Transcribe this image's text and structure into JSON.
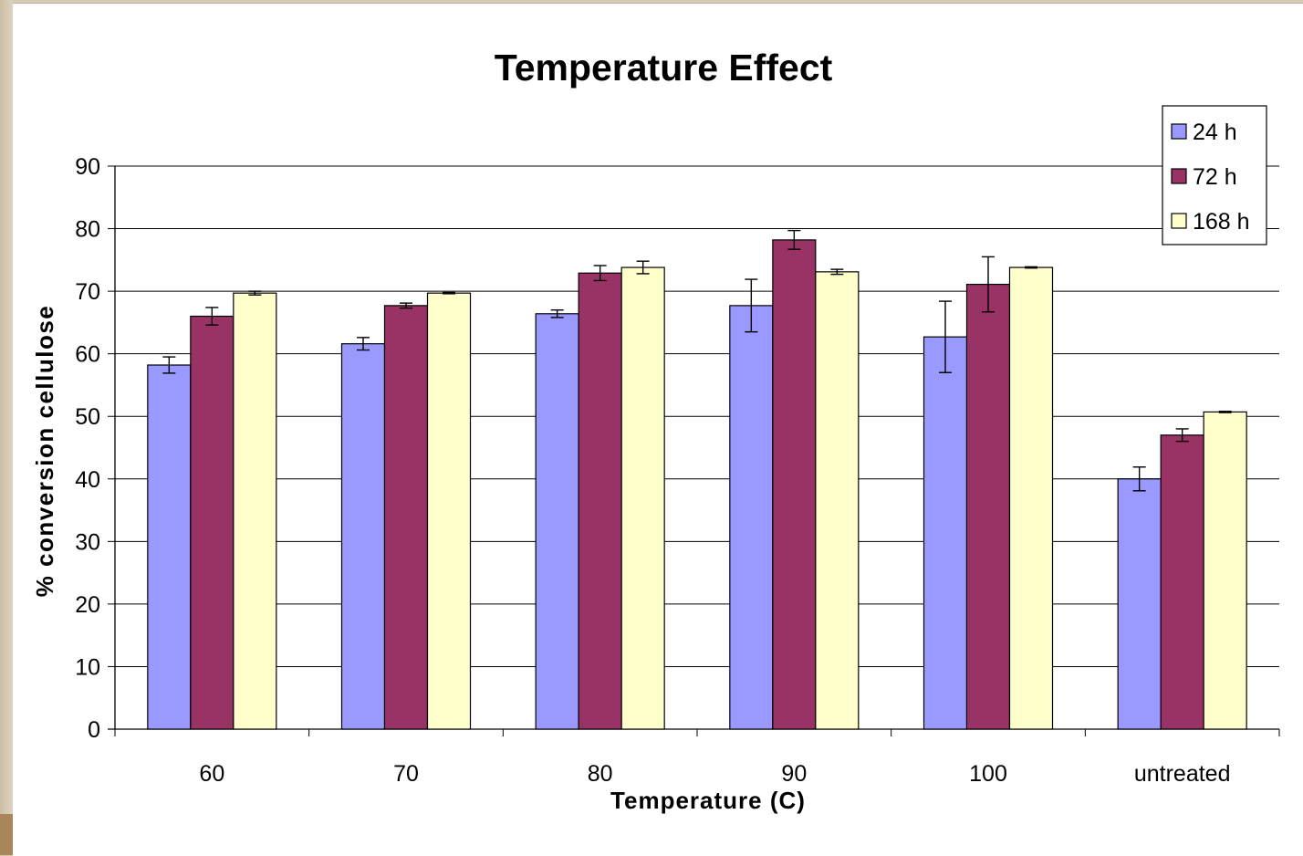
{
  "chart_data": {
    "type": "bar",
    "title": "Temperature Effect",
    "xlabel": "Temperature (C)",
    "ylabel": "% conversion cellulose",
    "categories": [
      "60",
      "70",
      "80",
      "90",
      "100",
      "untreated"
    ],
    "series": [
      {
        "name": "24 h",
        "color": "#9999ff",
        "values": [
          58.2,
          61.6,
          66.4,
          67.7,
          62.7,
          40.0
        ],
        "errors": [
          1.3,
          1.0,
          0.6,
          4.2,
          5.7,
          1.9
        ]
      },
      {
        "name": "72 h",
        "color": "#993366",
        "values": [
          66.0,
          67.7,
          72.9,
          78.2,
          71.1,
          47.0
        ],
        "errors": [
          1.4,
          0.4,
          1.2,
          1.5,
          4.4,
          1.0
        ]
      },
      {
        "name": "168 h",
        "color": "#ffffcc",
        "values": [
          69.7,
          69.7,
          73.8,
          73.1,
          73.8,
          50.7
        ],
        "errors": [
          0.3,
          0.1,
          1.0,
          0.4,
          0.1,
          0.1
        ]
      }
    ],
    "ylim": [
      0,
      90
    ],
    "yticks": [
      0,
      10,
      20,
      30,
      40,
      50,
      60,
      70,
      80,
      90
    ],
    "grid": true,
    "legend_position": "top-right",
    "error_bars": true
  }
}
